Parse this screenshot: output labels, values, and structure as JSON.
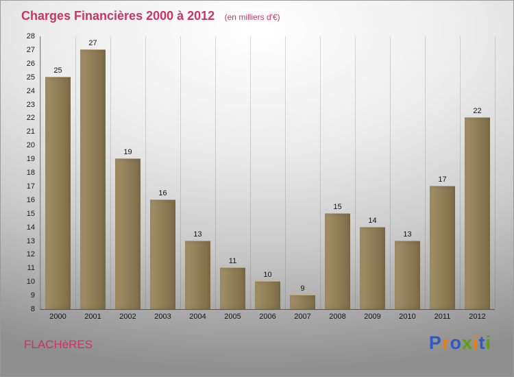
{
  "title": "Charges Financières 2000 à 2012",
  "subtitle": "(en milliers d'€)",
  "footer": {
    "company": "FLACHèRES",
    "logo_text": "Proxiti",
    "logo_letters": [
      {
        "ch": "P",
        "color": "#2e59c6"
      },
      {
        "ch": "r",
        "color": "#f07d00"
      },
      {
        "ch": "o",
        "color": "#2e59c6"
      },
      {
        "ch": "x",
        "color": "#5aa50a"
      },
      {
        "ch": "i",
        "color": "#f07d00"
      },
      {
        "ch": "t",
        "color": "#2e59c6"
      },
      {
        "ch": "i",
        "color": "#5aa50a"
      }
    ]
  },
  "colors": {
    "title": "#cc3366",
    "bar": "#8e7c56",
    "bar_light": "#a39068"
  },
  "chart_data": {
    "type": "bar",
    "title": "Charges Financières 2000 à 2012",
    "subtitle": "(en milliers d'€)",
    "categories": [
      "2000",
      "2001",
      "2002",
      "2003",
      "2004",
      "2005",
      "2006",
      "2007",
      "2008",
      "2009",
      "2010",
      "2011",
      "2012"
    ],
    "values": [
      25,
      27,
      19,
      16,
      13,
      11,
      10,
      9,
      15,
      14,
      13,
      17,
      22
    ],
    "xlabel": "",
    "ylabel": "",
    "ylim": [
      8,
      28
    ],
    "ytick_step": 1,
    "grid": "vertical-only",
    "legend": "none"
  }
}
